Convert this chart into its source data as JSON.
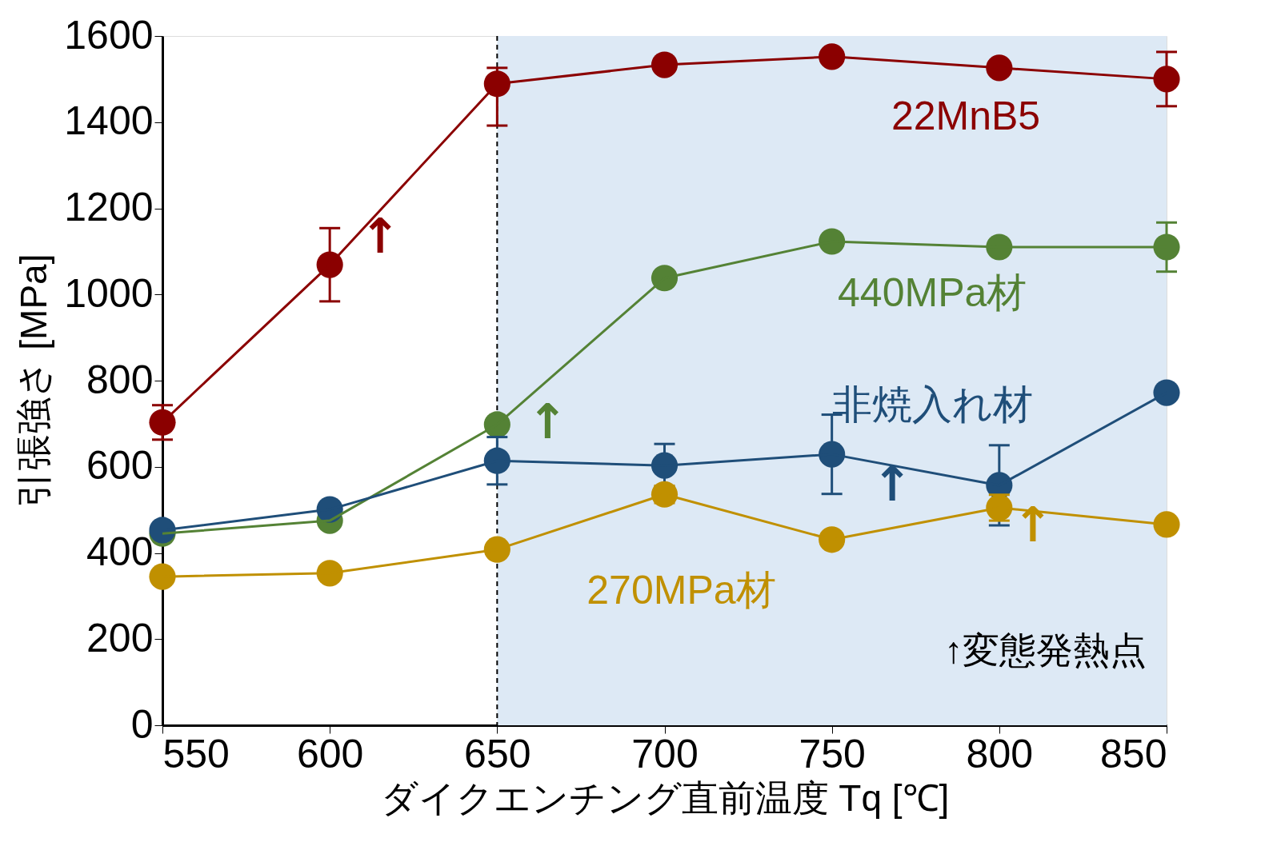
{
  "chart_data": {
    "type": "line",
    "xlabel": "ダイクエンチング直前温度 Tq [℃]",
    "ylabel": "引張強さ [MPa]",
    "x": [
      550,
      600,
      650,
      700,
      750,
      800,
      850
    ],
    "xlim": [
      550,
      850
    ],
    "xticks": [
      550,
      600,
      650,
      700,
      750,
      800,
      850
    ],
    "ylim": [
      0,
      1600
    ],
    "yticks": [
      0,
      200,
      400,
      600,
      800,
      1000,
      1200,
      1400,
      1600
    ],
    "grid": false,
    "legend": false,
    "marker": "circle",
    "line_style": "solid",
    "series": [
      {
        "name": "22MnB5",
        "color": "#8b0000",
        "values": [
          703,
          1069,
          1489,
          1533,
          1552,
          1526,
          1500
        ],
        "errors": [
          40,
          85,
          [
            1392,
            1526
          ],
          null,
          10,
          12,
          63
        ]
      },
      {
        "name": "440MPa材",
        "color": "#548235",
        "values": [
          445,
          475,
          698,
          1038,
          1123,
          1110,
          1110
        ],
        "errors": [
          null,
          null,
          null,
          null,
          10,
          12,
          57
        ]
      },
      {
        "name": "非焼入れ材",
        "color": "#1f4e79",
        "values": [
          453,
          501,
          614,
          603,
          629,
          557,
          772
        ],
        "errors": [
          null,
          null,
          55,
          50,
          92,
          93,
          null
        ]
      },
      {
        "name": "270MPa材",
        "color": "#c09000",
        "values": [
          345,
          353,
          408,
          536,
          431,
          505,
          466
        ],
        "errors": [
          null,
          null,
          null,
          20,
          null,
          30,
          15
        ]
      }
    ],
    "bands": [
      {
        "axis": "x",
        "from": 650,
        "to": 850,
        "color": "#dde9f5"
      }
    ],
    "ref_lines": [
      {
        "axis": "x",
        "value": 650,
        "color": "#000000",
        "line_style": "dashed"
      }
    ],
    "annotations": [
      "↑",
      "↑",
      "↑",
      "↑",
      "↑変態発熱点"
    ]
  }
}
